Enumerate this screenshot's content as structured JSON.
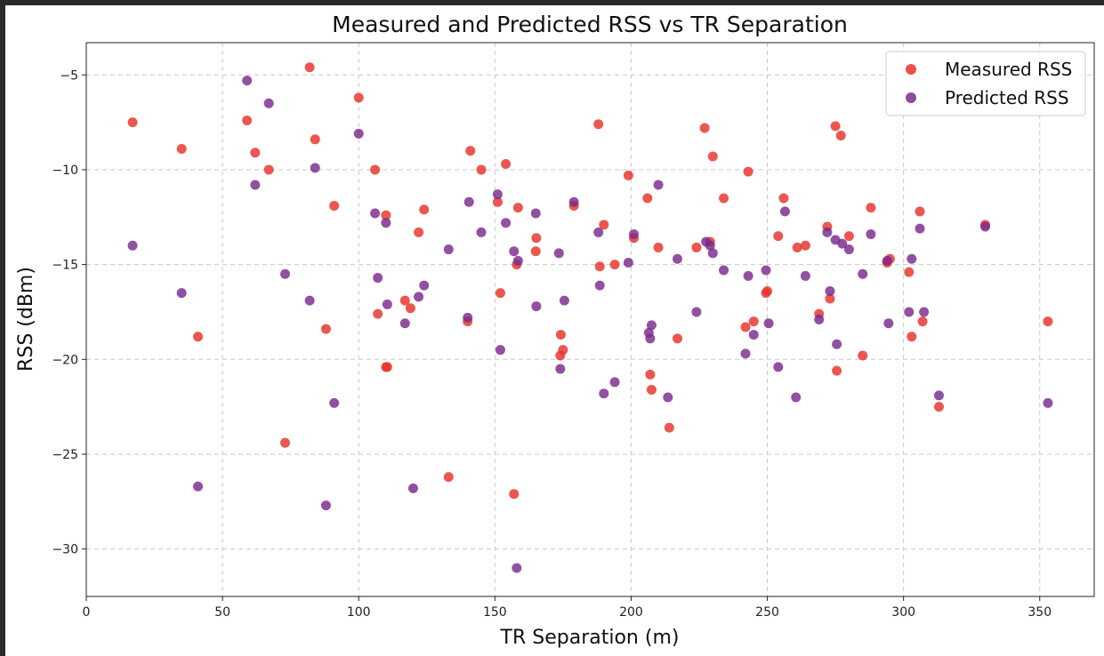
{
  "chart_data": {
    "type": "scatter",
    "title": "Measured and Predicted RSS vs TR Separation",
    "xlabel": "TR Separation (m)",
    "ylabel": "RSS (dBm)",
    "xlim": [
      0,
      370
    ],
    "ylim": [
      -32.5,
      -3.3
    ],
    "xticks": [
      0,
      50,
      100,
      150,
      200,
      250,
      300,
      350
    ],
    "yticks": [
      -5,
      -10,
      -15,
      -20,
      -25,
      -30
    ],
    "xtick_labels": [
      "0",
      "50",
      "100",
      "150",
      "200",
      "250",
      "300",
      "350"
    ],
    "ytick_labels": [
      "−5",
      "−10",
      "−15",
      "−20",
      "−25",
      "−30"
    ],
    "grid": true,
    "legend_position": "top-right",
    "series": [
      {
        "name": "Measured RSS",
        "color": "#e8312a",
        "points": [
          [
            17,
            -7.5
          ],
          [
            35,
            -8.9
          ],
          [
            41,
            -18.8
          ],
          [
            59,
            -7.4
          ],
          [
            62,
            -9.1
          ],
          [
            67,
            -10
          ],
          [
            73,
            -24.4
          ],
          [
            82,
            -4.6
          ],
          [
            84,
            -8.4
          ],
          [
            88,
            -18.4
          ],
          [
            91,
            -11.9
          ],
          [
            100,
            -6.2
          ],
          [
            106,
            -10
          ],
          [
            107,
            -17.6
          ],
          [
            110,
            -12.4
          ],
          [
            110,
            -20.4
          ],
          [
            110.5,
            -20.4
          ],
          [
            117,
            -16.9
          ],
          [
            119,
            -17.3
          ],
          [
            122,
            -13.3
          ],
          [
            124,
            -12.1
          ],
          [
            133,
            -26.2
          ],
          [
            140,
            -18
          ],
          [
            141,
            -9
          ],
          [
            145,
            -10
          ],
          [
            151,
            -11.7
          ],
          [
            152,
            -16.5
          ],
          [
            154,
            -9.7
          ],
          [
            157,
            -27.1
          ],
          [
            158,
            -15
          ],
          [
            158.5,
            -12
          ],
          [
            165,
            -14.3
          ],
          [
            165.2,
            -13.6
          ],
          [
            174,
            -19.8
          ],
          [
            174.2,
            -18.7
          ],
          [
            175,
            -19.5
          ],
          [
            179,
            -11.9
          ],
          [
            188,
            -7.6
          ],
          [
            188.5,
            -15.1
          ],
          [
            190,
            -12.9
          ],
          [
            194,
            -15
          ],
          [
            199,
            -10.3
          ],
          [
            201,
            -13.6
          ],
          [
            206,
            -11.5
          ],
          [
            207,
            -20.8
          ],
          [
            207.5,
            -21.6
          ],
          [
            210,
            -14.1
          ],
          [
            214,
            -23.6
          ],
          [
            217,
            -18.9
          ],
          [
            224,
            -14.1
          ],
          [
            227,
            -7.8
          ],
          [
            229,
            -13.8
          ],
          [
            230,
            -9.3
          ],
          [
            234,
            -11.5
          ],
          [
            242,
            -18.3
          ],
          [
            243,
            -10.1
          ],
          [
            245,
            -18
          ],
          [
            249.5,
            -16.5
          ],
          [
            250,
            -16.4
          ],
          [
            254,
            -13.5
          ],
          [
            256,
            -11.5
          ],
          [
            261,
            -14.1
          ],
          [
            264,
            -14
          ],
          [
            269,
            -17.6
          ],
          [
            272,
            -13
          ],
          [
            273,
            -16.8
          ],
          [
            275,
            -7.7
          ],
          [
            275.5,
            -20.6
          ],
          [
            277,
            -8.2
          ],
          [
            280,
            -13.5
          ],
          [
            285,
            -19.8
          ],
          [
            288,
            -12
          ],
          [
            294,
            -14.9
          ],
          [
            295,
            -14.7
          ],
          [
            302,
            -15.4
          ],
          [
            303,
            -18.8
          ],
          [
            306,
            -12.2
          ],
          [
            307,
            -18
          ],
          [
            313,
            -22.5
          ],
          [
            330,
            -12.9
          ],
          [
            353,
            -18
          ]
        ]
      },
      {
        "name": "Predicted RSS",
        "color": "#7a2a8e",
        "points": [
          [
            17,
            -14
          ],
          [
            35,
            -16.5
          ],
          [
            41,
            -26.7
          ],
          [
            59,
            -5.3
          ],
          [
            62,
            -10.8
          ],
          [
            67,
            -6.5
          ],
          [
            73,
            -15.5
          ],
          [
            82,
            -16.9
          ],
          [
            84,
            -9.9
          ],
          [
            88,
            -27.7
          ],
          [
            91,
            -22.3
          ],
          [
            100,
            -8.1
          ],
          [
            106,
            -12.3
          ],
          [
            107,
            -15.7
          ],
          [
            110,
            -12.8
          ],
          [
            110.5,
            -17.1
          ],
          [
            117,
            -18.1
          ],
          [
            120,
            -26.8
          ],
          [
            122,
            -16.7
          ],
          [
            124,
            -16.1
          ],
          [
            133,
            -14.2
          ],
          [
            140,
            -17.8
          ],
          [
            140.5,
            -11.7
          ],
          [
            145,
            -13.3
          ],
          [
            151,
            -11.3
          ],
          [
            152,
            -19.5
          ],
          [
            154,
            -12.8
          ],
          [
            157,
            -14.3
          ],
          [
            158,
            -31
          ],
          [
            158.5,
            -14.8
          ],
          [
            165,
            -12.3
          ],
          [
            165.2,
            -17.2
          ],
          [
            173.5,
            -14.4
          ],
          [
            174,
            -20.5
          ],
          [
            175.5,
            -16.9
          ],
          [
            179,
            -11.7
          ],
          [
            188,
            -13.3
          ],
          [
            188.5,
            -16.1
          ],
          [
            190,
            -21.8
          ],
          [
            194,
            -21.2
          ],
          [
            199,
            -14.9
          ],
          [
            201,
            -13.4
          ],
          [
            206.5,
            -18.6
          ],
          [
            207,
            -18.9
          ],
          [
            207.5,
            -18.2
          ],
          [
            210,
            -10.8
          ],
          [
            213.5,
            -22
          ],
          [
            217,
            -14.7
          ],
          [
            224,
            -17.5
          ],
          [
            227.5,
            -13.8
          ],
          [
            229,
            -14
          ],
          [
            230,
            -14.4
          ],
          [
            234,
            -15.3
          ],
          [
            242,
            -19.7
          ],
          [
            243,
            -15.6
          ],
          [
            245,
            -18.7
          ],
          [
            249.5,
            -15.3
          ],
          [
            250.5,
            -18.1
          ],
          [
            254,
            -20.4
          ],
          [
            256.5,
            -12.2
          ],
          [
            260.5,
            -22
          ],
          [
            264,
            -15.6
          ],
          [
            269,
            -17.9
          ],
          [
            272,
            -13.3
          ],
          [
            273,
            -16.4
          ],
          [
            275,
            -13.7
          ],
          [
            275.5,
            -19.2
          ],
          [
            277.5,
            -13.9
          ],
          [
            280,
            -14.2
          ],
          [
            285,
            -15.5
          ],
          [
            288,
            -13.4
          ],
          [
            294,
            -14.8
          ],
          [
            294.5,
            -18.1
          ],
          [
            302,
            -17.5
          ],
          [
            303,
            -14.7
          ],
          [
            306,
            -13.1
          ],
          [
            307.5,
            -17.5
          ],
          [
            313,
            -21.9
          ],
          [
            330,
            -13
          ],
          [
            353,
            -22.3
          ]
        ]
      }
    ]
  }
}
